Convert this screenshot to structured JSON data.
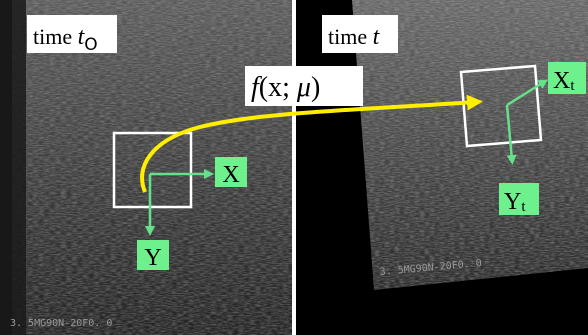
{
  "panels": [
    {
      "id": "left",
      "time_label": "time ",
      "time_var": "t",
      "time_sub": "O",
      "axis_x": "X",
      "axis_y": "Y",
      "watermark": "3. 5MG90N-20F0. 0"
    },
    {
      "id": "right",
      "time_label": "time ",
      "time_var": "t",
      "axis_x_main": "X",
      "axis_x_sub": "t",
      "axis_y_main": "Y",
      "axis_y_sub": "t",
      "watermark": "3. 5MG90N-20F0. 0"
    }
  ],
  "transform_label": {
    "f": "f",
    "open": "(",
    "x": "x",
    "sep": "; ",
    "mu": "μ",
    "close": ")"
  },
  "colors": {
    "axis_arrow": "#66e08a",
    "label_bg": "#6ef08c",
    "warp_arrow": "#ffee00",
    "roi_box": "#ffffff"
  }
}
